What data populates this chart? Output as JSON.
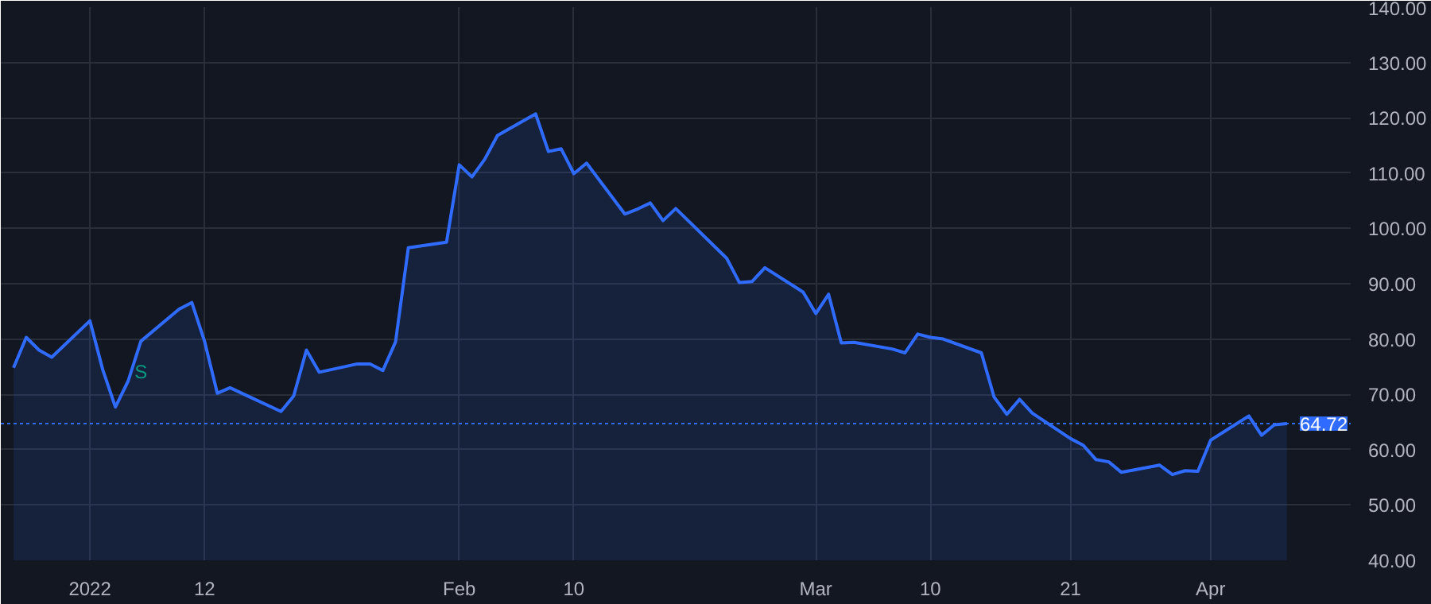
{
  "chart_data": {
    "type": "area",
    "x": [
      "2021-12-28",
      "2021-12-29",
      "2021-12-30",
      "2021-12-31",
      "2022-01-03",
      "2022-01-04",
      "2022-01-05",
      "2022-01-06",
      "2022-01-07",
      "2022-01-10",
      "2022-01-11",
      "2022-01-12",
      "2022-01-13",
      "2022-01-14",
      "2022-01-18",
      "2022-01-19",
      "2022-01-20",
      "2022-01-21",
      "2022-01-24",
      "2022-01-25",
      "2022-01-26",
      "2022-01-27",
      "2022-01-28",
      "2022-01-31",
      "2022-02-01",
      "2022-02-02",
      "2022-02-03",
      "2022-02-04",
      "2022-02-07",
      "2022-02-08",
      "2022-02-09",
      "2022-02-10",
      "2022-02-11",
      "2022-02-14",
      "2022-02-15",
      "2022-02-16",
      "2022-02-17",
      "2022-02-18",
      "2022-02-22",
      "2022-02-23",
      "2022-02-24",
      "2022-02-25",
      "2022-02-28",
      "2022-03-01",
      "2022-03-02",
      "2022-03-03",
      "2022-03-04",
      "2022-03-07",
      "2022-03-08",
      "2022-03-09",
      "2022-03-10",
      "2022-03-11",
      "2022-03-14",
      "2022-03-15",
      "2022-03-16",
      "2022-03-17",
      "2022-03-18",
      "2022-03-21",
      "2022-03-22",
      "2022-03-23",
      "2022-03-24",
      "2022-03-25",
      "2022-03-28",
      "2022-03-29",
      "2022-03-30",
      "2022-03-31",
      "2022-04-01",
      "2022-04-04",
      "2022-04-05",
      "2022-04-06",
      "2022-04-07"
    ],
    "series": [
      {
        "color": "#2f6bff",
        "values": [
          74.8,
          80.3,
          78.0,
          76.7,
          83.3,
          74.5,
          67.7,
          72.4,
          79.6,
          85.4,
          86.6,
          79.6,
          70.2,
          71.2,
          66.9,
          69.7,
          78.0,
          74.0,
          75.5,
          75.5,
          74.3,
          79.5,
          96.5,
          97.5,
          111.5,
          109.3,
          112.5,
          116.8,
          120.7,
          113.9,
          114.4,
          109.9,
          111.8,
          102.6,
          103.5,
          104.6,
          101.4,
          103.6,
          94.6,
          90.2,
          90.4,
          92.9,
          88.5,
          84.6,
          88.1,
          79.3,
          79.4,
          78.2,
          77.5,
          80.9,
          80.3,
          80.0,
          77.5,
          69.5,
          66.4,
          69.1,
          66.6,
          62.0,
          60.8,
          58.2,
          57.8,
          55.9,
          57.2,
          55.5,
          56.2,
          56.1,
          61.7,
          66.1,
          62.6,
          64.5,
          64.7
        ]
      }
    ],
    "xlim": [
      "2021-12-27",
      "2022-04-12"
    ],
    "xticks": [
      {
        "value": "2022-01-03",
        "label": "2022"
      },
      {
        "value": "2022-01-12",
        "label": "12"
      },
      {
        "value": "2022-02-01",
        "label": "Feb"
      },
      {
        "value": "2022-02-10",
        "label": "10"
      },
      {
        "value": "2022-03-01",
        "label": "Mar"
      },
      {
        "value": "2022-03-10",
        "label": "10"
      },
      {
        "value": "2022-03-21",
        "label": "21"
      },
      {
        "value": "2022-04-01",
        "label": "Apr"
      }
    ],
    "ylim": [
      40,
      140
    ],
    "yticks": [
      {
        "value": 40,
        "label": "40.00"
      },
      {
        "value": 50,
        "label": "50.00"
      },
      {
        "value": 60,
        "label": "60.00"
      },
      {
        "value": 70,
        "label": "70.00"
      },
      {
        "value": 80,
        "label": "80.00"
      },
      {
        "value": 90,
        "label": "90.00"
      },
      {
        "value": 100,
        "label": "100.00"
      },
      {
        "value": 110,
        "label": "110.00"
      },
      {
        "value": 120,
        "label": "120.00"
      },
      {
        "value": 130,
        "label": "130.00"
      },
      {
        "value": 140,
        "label": "140.00"
      }
    ],
    "grid": true,
    "ref_lines": [
      {
        "axis": "y",
        "value": 64.72,
        "label": "64.72",
        "color": "#2f6bff",
        "line_style": "dotted"
      }
    ],
    "annotations": [
      {
        "text": "S",
        "x": "2022-01-07",
        "y": 79.6
      }
    ]
  }
}
